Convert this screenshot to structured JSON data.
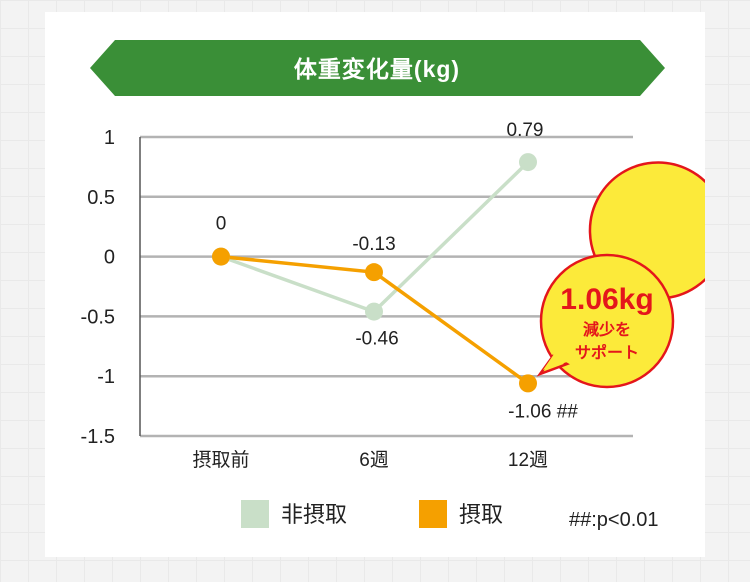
{
  "chart_data": {
    "type": "line",
    "title": "体重変化量(kg)",
    "categories": [
      "摂取前",
      "6週",
      "12週"
    ],
    "ylim": [
      -1.5,
      1
    ],
    "yticks": [
      "1",
      "0.5",
      "0",
      "-0.5",
      "-1",
      "-1.5"
    ],
    "ytick_values": [
      1,
      0.5,
      0,
      -0.5,
      -1,
      -1.5
    ],
    "grid": true,
    "legend_position": "bottom",
    "series": [
      {
        "name": "非摂取",
        "color": "#c9dfc8",
        "values": [
          0,
          -0.46,
          0.79
        ],
        "labels": [
          "",
          "-0.46",
          "0.79"
        ]
      },
      {
        "name": "摂取",
        "color": "#f5a000",
        "values": [
          0,
          -0.13,
          -1.06
        ],
        "labels": [
          "0",
          "-0.13",
          "-1.06 ##"
        ]
      }
    ],
    "callout": {
      "main": "1.06kg",
      "line1": "減少を",
      "line2": "サポート"
    },
    "note": "##:p<0.01"
  },
  "colors": {
    "title_banner": "#3a8f37",
    "grid": "#b3b3b3",
    "axis": "#555555",
    "callout_fill": "#fcea3a",
    "callout_stroke": "#e4161b"
  }
}
